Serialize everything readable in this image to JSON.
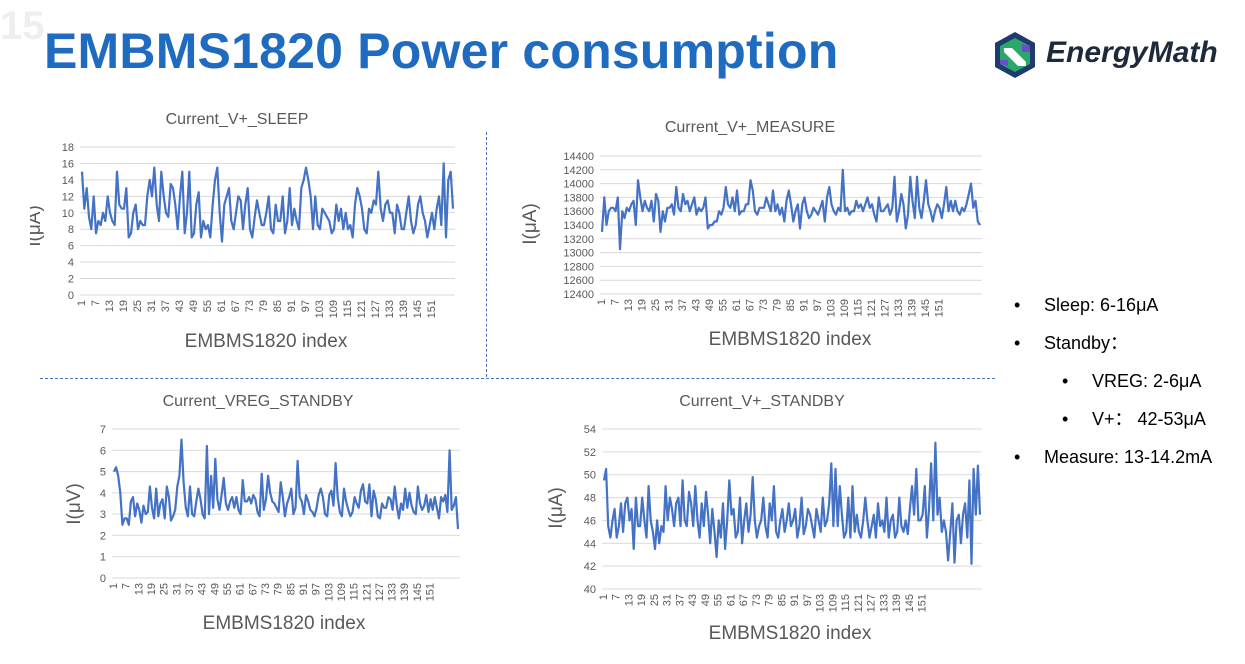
{
  "slide": {
    "watermark": "15",
    "title": "EMBMS1820 Power consumption",
    "logo_text": "EnergyMath",
    "colors": {
      "title": "#1f6bc0",
      "series": "#4472c4",
      "divider": "#4a72b8"
    }
  },
  "bullets": [
    {
      "level": 0,
      "text": "Sleep: 6-16μA"
    },
    {
      "level": 0,
      "text": "Standby："
    },
    {
      "level": 1,
      "text": "VREG: 2-6μA"
    },
    {
      "level": 1,
      "text": "V+：  42-53μA"
    },
    {
      "level": 0,
      "text": "Measure: 13-14.2mA"
    }
  ],
  "chart_data": [
    {
      "type": "line",
      "title": "Current_V+_SLEEP",
      "xlabel": "EMBMS1820 index",
      "ylabel": "I(μA)",
      "ylim": [
        0,
        18
      ],
      "yticks": [
        "0",
        "2",
        "4",
        "6",
        "8",
        "10",
        "12",
        "14",
        "16",
        "18"
      ],
      "xticks": [
        "1",
        "7",
        "13",
        "19",
        "25",
        "31",
        "37",
        "43",
        "49",
        "55",
        "61",
        "67",
        "73",
        "79",
        "85",
        "91",
        "97",
        "103",
        "109",
        "115",
        "121",
        "127",
        "133",
        "139",
        "145",
        "151"
      ],
      "grid": true,
      "series": [
        {
          "values": [
            15,
            10.5,
            13,
            9.5,
            8,
            12,
            7.5,
            9,
            8.5,
            10,
            9,
            12,
            10,
            9,
            8.5,
            15,
            11,
            10.5,
            10.5,
            13,
            7,
            7.5,
            10,
            11,
            8,
            9,
            8.5,
            8.5,
            12,
            14,
            12,
            15.5,
            11,
            9,
            15,
            12,
            10,
            9.5,
            13.5,
            13,
            11,
            8,
            12,
            15,
            7.5,
            10,
            15,
            7,
            7.5,
            11,
            12.5,
            7,
            9,
            8,
            8.5,
            7,
            11,
            14,
            15.5,
            10,
            6.5,
            11,
            12,
            13,
            9,
            8,
            10,
            12,
            11.5,
            8,
            11,
            13,
            8,
            7,
            9.5,
            11.5,
            10,
            8.5,
            8.5,
            10,
            12,
            8,
            7.5,
            11,
            9,
            9,
            12,
            7.5,
            9,
            13,
            8.5,
            10.5,
            9,
            8,
            13,
            14,
            15.5,
            14,
            12,
            8,
            12,
            8.5,
            8,
            10.5,
            10,
            9.5,
            9,
            7.5,
            8,
            11,
            9,
            10.5,
            8,
            10,
            8,
            8.5,
            7,
            11,
            13,
            12,
            10.5,
            8,
            7.5,
            10.5,
            10,
            11.5,
            11,
            15,
            10.5,
            9,
            11,
            11.5,
            10,
            10,
            7.5,
            11,
            10,
            8,
            8,
            10,
            12,
            9,
            7.5,
            8.5,
            11,
            12,
            10,
            9,
            7,
            8.5,
            10,
            8,
            10.5,
            12,
            8.5,
            16,
            7,
            14,
            15,
            10.5
          ]
        }
      ]
    },
    {
      "type": "line",
      "title": "Current_V+_MEASURE",
      "xlabel": "EMBMS1820 index",
      "ylabel": "I(μA)",
      "ylim": [
        12400,
        14400
      ],
      "yticks": [
        "12400",
        "12600",
        "12800",
        "13000",
        "13200",
        "13400",
        "13600",
        "13800",
        "14000",
        "14200",
        "14400"
      ],
      "xticks": [
        "1",
        "7",
        "13",
        "19",
        "25",
        "31",
        "37",
        "43",
        "49",
        "55",
        "61",
        "67",
        "73",
        "79",
        "85",
        "91",
        "97",
        "103",
        "109",
        "115",
        "121",
        "127",
        "133",
        "139",
        "145",
        "151"
      ],
      "grid": true,
      "series": [
        {
          "values": [
            13300,
            13800,
            13400,
            13600,
            13650,
            13650,
            13600,
            13800,
            13050,
            13600,
            13500,
            13650,
            13600,
            13700,
            13750,
            13400,
            14050,
            13800,
            13600,
            13750,
            13650,
            13600,
            13750,
            13450,
            13850,
            13750,
            13300,
            13600,
            13450,
            13650,
            13650,
            13700,
            13550,
            13950,
            13650,
            13600,
            13850,
            13700,
            13750,
            13600,
            13700,
            13800,
            13550,
            13650,
            13600,
            13650,
            13800,
            13350,
            13400,
            13400,
            13450,
            13450,
            13600,
            13550,
            13650,
            13950,
            13700,
            13650,
            13800,
            13600,
            13900,
            13550,
            13600,
            13600,
            13700,
            13700,
            14050,
            13900,
            13600,
            13550,
            13650,
            13650,
            13650,
            13800,
            13700,
            13600,
            13900,
            13600,
            13700,
            13550,
            13650,
            13450,
            13750,
            13900,
            13700,
            13450,
            13600,
            13700,
            13350,
            13700,
            13800,
            13600,
            13500,
            13550,
            13650,
            13600,
            13550,
            13650,
            13750,
            13450,
            13800,
            13950,
            13700,
            13600,
            13550,
            13650,
            13600,
            14200,
            13600,
            13650,
            13550,
            13600,
            13600,
            13750,
            13650,
            13700,
            13600,
            13700,
            13800,
            13650,
            13700,
            13550,
            13450,
            13800,
            13600,
            13600,
            13650,
            13700,
            13550,
            13650,
            14100,
            13450,
            13600,
            13850,
            13700,
            13350,
            13550,
            14100,
            13750,
            13500,
            14100,
            13650,
            13500,
            13750,
            14050,
            13700,
            13600,
            13450,
            13600,
            13700,
            13650,
            13500,
            13700,
            13950,
            13600,
            13750,
            13600,
            13750,
            13600,
            13550,
            13650,
            13600,
            13700,
            13850,
            14000,
            13650,
            13750,
            13450,
            13400
          ]
        }
      ]
    },
    {
      "type": "line",
      "title": "Current_VREG_STANDBY",
      "xlabel": "EMBMS1820 index",
      "ylabel": "I(μV)",
      "ylim": [
        0,
        7
      ],
      "yticks": [
        "0",
        "1",
        "2",
        "3",
        "4",
        "5",
        "6",
        "7"
      ],
      "xticks": [
        "1",
        "7",
        "13",
        "19",
        "25",
        "31",
        "37",
        "43",
        "49",
        "55",
        "61",
        "67",
        "73",
        "79",
        "85",
        "91",
        "97",
        "103",
        "109",
        "115",
        "121",
        "127",
        "133",
        "139",
        "145",
        "151"
      ],
      "grid": true,
      "series": [
        {
          "values": [
            5,
            5.2,
            4.8,
            4,
            2.5,
            2.8,
            2.8,
            2.5,
            3.6,
            3.8,
            2.9,
            3.5,
            3.2,
            2.6,
            3.4,
            3,
            3.1,
            4.3,
            3.3,
            2.8,
            4.2,
            2.9,
            3.5,
            3.7,
            2.8,
            4.3,
            3.8,
            2.7,
            2.9,
            3.2,
            4.3,
            4.8,
            6.5,
            4.5,
            3.3,
            2.9,
            4.3,
            3,
            2.9,
            3.6,
            4.2,
            3.7,
            3,
            2.8,
            6.2,
            3,
            4.8,
            3.3,
            5.6,
            3.7,
            3.2,
            3.9,
            4.7,
            3.5,
            3.2,
            3.6,
            3.8,
            3.3,
            3.8,
            3.2,
            3,
            4.6,
            3.6,
            3.6,
            3.8,
            3.5,
            3.9,
            3.7,
            3.1,
            2.9,
            4.9,
            3.2,
            3.7,
            4.8,
            4,
            3.6,
            3.5,
            3.3,
            3.1,
            4.5,
            3.8,
            2.9,
            3.5,
            3.8,
            4.2,
            3,
            3.3,
            5.5,
            3.8,
            3.6,
            3,
            3.9,
            3.6,
            3.2,
            3.1,
            2.9,
            3.3,
            3.9,
            4.2,
            3.8,
            3,
            2.9,
            3.9,
            4.1,
            3.4,
            5.4,
            3.8,
            3.1,
            2.9,
            4.2,
            3.6,
            3.2,
            2.9,
            3.1,
            3.8,
            3.5,
            3.3,
            4.1,
            4.4,
            3.6,
            3.5,
            4.4,
            2.9,
            4.1,
            3.7,
            2.9,
            2.8,
            3.5,
            3.3,
            3.3,
            3.8,
            3.7,
            3.2,
            4.3,
            3.4,
            2.8,
            3.5,
            3.2,
            4.2,
            3.3,
            4,
            3.4,
            3.1,
            3,
            4.3,
            3.5,
            3.2,
            3.4,
            3.9,
            3.1,
            3.7,
            3.2,
            3.8,
            3.3,
            2.8,
            3.8,
            3.6,
            3.9,
            3.1,
            6,
            3.2,
            3.4,
            3.8,
            2.3
          ]
        }
      ]
    },
    {
      "type": "line",
      "title": "Current_V+_STANDBY",
      "xlabel": "EMBMS1820 index",
      "ylabel": "I(μA)",
      "ylim": [
        40,
        54
      ],
      "yticks": [
        "40",
        "42",
        "44",
        "46",
        "48",
        "50",
        "52",
        "54"
      ],
      "xticks": [
        "1",
        "7",
        "13",
        "19",
        "25",
        "31",
        "37",
        "43",
        "49",
        "55",
        "61",
        "67",
        "73",
        "79",
        "85",
        "91",
        "97",
        "103",
        "109",
        "115",
        "121",
        "127",
        "133",
        "139",
        "145",
        "151"
      ],
      "grid": true,
      "series": [
        {
          "values": [
            49.5,
            50.5,
            45.5,
            44.5,
            46,
            47,
            44.5,
            45.5,
            47.5,
            45,
            47.5,
            48,
            46,
            47,
            43.5,
            48,
            45.5,
            45.5,
            48,
            46,
            44.5,
            49,
            46,
            45,
            43.5,
            46,
            44,
            45.5,
            45,
            49,
            46,
            48,
            47,
            45.5,
            47.5,
            48,
            45.5,
            49.5,
            46,
            45.5,
            48.5,
            47.5,
            45.5,
            49,
            46,
            44.5,
            47.5,
            45.5,
            48.5,
            46.5,
            44,
            47,
            45,
            42.8,
            46,
            44.5,
            47.5,
            43.5,
            46,
            49.5,
            46.5,
            47,
            44.5,
            45,
            48,
            44,
            46,
            47.5,
            45,
            46.5,
            49.8,
            46,
            44.5,
            45.5,
            46,
            48,
            45.5,
            44.5,
            47.5,
            46,
            49,
            45,
            44.5,
            46,
            47,
            45,
            46,
            47.5,
            45.5,
            46,
            47,
            44.5,
            45.5,
            48,
            44.8,
            45.5,
            47,
            46.5,
            45.5,
            44.5,
            47,
            46,
            45,
            48,
            45.5,
            46,
            47.5,
            51,
            45.5,
            50.5,
            45.5,
            49,
            46.5,
            44.5,
            45,
            48,
            44.5,
            49,
            45,
            46.5,
            45,
            44.5,
            46,
            48,
            46,
            44.5,
            45.5,
            46.5,
            44.5,
            47.5,
            45.5,
            46,
            45,
            48,
            44.5,
            46,
            46.5,
            44.5,
            45,
            48,
            45.5,
            45,
            46,
            44.8,
            47,
            49,
            46.5,
            50.5,
            46,
            46,
            46.5,
            49,
            44.5,
            47,
            51,
            46,
            52.8,
            46.5,
            48,
            45,
            46,
            45,
            42.5,
            45,
            47.5,
            42.3,
            46,
            46.5,
            44,
            46.5,
            47.5,
            44.5,
            49.5,
            42.2,
            50.5,
            46.5,
            50.8,
            46.5
          ]
        }
      ]
    }
  ]
}
